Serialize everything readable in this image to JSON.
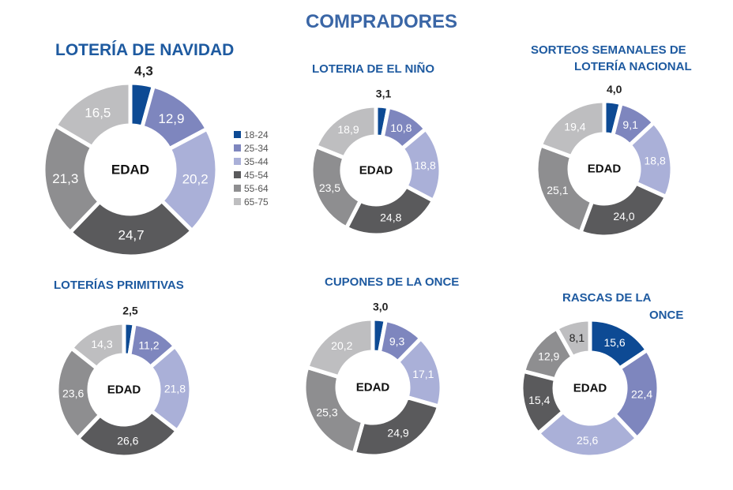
{
  "title": "COMPRADORES",
  "legend": {
    "labels": [
      "18-24",
      "25-34",
      "35-44",
      "45-54",
      "55-64",
      "65-75"
    ],
    "colors": [
      "#0d4a94",
      "#7e86be",
      "#aab0d8",
      "#5a5a5c",
      "#8e8e90",
      "#bebec0"
    ]
  },
  "center_label": "EDAD",
  "chart_data": [
    {
      "type": "pie",
      "title": "LOTERÍA DE NAVIDAD",
      "categories": [
        "18-24",
        "25-34",
        "35-44",
        "45-54",
        "55-64",
        "65-75"
      ],
      "values": [
        4.3,
        12.9,
        20.2,
        24.7,
        21.3,
        16.5
      ],
      "labels": [
        "4,3",
        "12,9",
        "20,2",
        "24,7",
        "21,3",
        "16,5"
      ]
    },
    {
      "type": "pie",
      "title": "LOTERIA DE EL NIÑO",
      "categories": [
        "18-24",
        "25-34",
        "35-44",
        "45-54",
        "55-64",
        "65-75"
      ],
      "values": [
        3.1,
        10.8,
        18.8,
        24.8,
        23.5,
        18.9
      ],
      "labels": [
        "3,1",
        "10,8",
        "18,8",
        "24,8",
        "23,5",
        "18,9"
      ]
    },
    {
      "type": "pie",
      "title": [
        "SORTEOS SEMANALES DE",
        "LOTERÍA NACIONAL"
      ],
      "categories": [
        "18-24",
        "25-34",
        "35-44",
        "45-54",
        "55-64",
        "65-75"
      ],
      "values": [
        4.0,
        9.1,
        18.8,
        24.0,
        25.1,
        19.4
      ],
      "labels": [
        "4,0",
        "9,1",
        "18,8",
        "24,0",
        "25,1",
        "19,4"
      ]
    },
    {
      "type": "pie",
      "title": "LOTERÍAS PRIMITIVAS",
      "categories": [
        "18-24",
        "25-34",
        "35-44",
        "45-54",
        "55-64",
        "65-75"
      ],
      "values": [
        2.5,
        11.2,
        21.8,
        26.6,
        23.6,
        14.3
      ],
      "labels": [
        "2,5",
        "11,2",
        "21,8",
        "26,6",
        "23,6",
        "14,3"
      ]
    },
    {
      "type": "pie",
      "title": "CUPONES DE LA ONCE",
      "categories": [
        "18-24",
        "25-34",
        "35-44",
        "45-54",
        "55-64",
        "65-75"
      ],
      "values": [
        3.0,
        9.3,
        17.1,
        24.9,
        25.3,
        20.2
      ],
      "labels": [
        "3,0",
        "9,3",
        "17,1",
        "24,9",
        "25,3",
        "20,2"
      ]
    },
    {
      "type": "pie",
      "title": [
        "RASCAS DE LA",
        "ONCE"
      ],
      "categories": [
        "18-24",
        "25-34",
        "35-44",
        "45-54",
        "55-64",
        "65-75"
      ],
      "values": [
        15.6,
        22.4,
        25.6,
        15.4,
        12.9,
        8.1
      ],
      "labels": [
        "15,6",
        "22,4",
        "25,6",
        "15,4",
        "12,9",
        "8,1"
      ]
    }
  ]
}
